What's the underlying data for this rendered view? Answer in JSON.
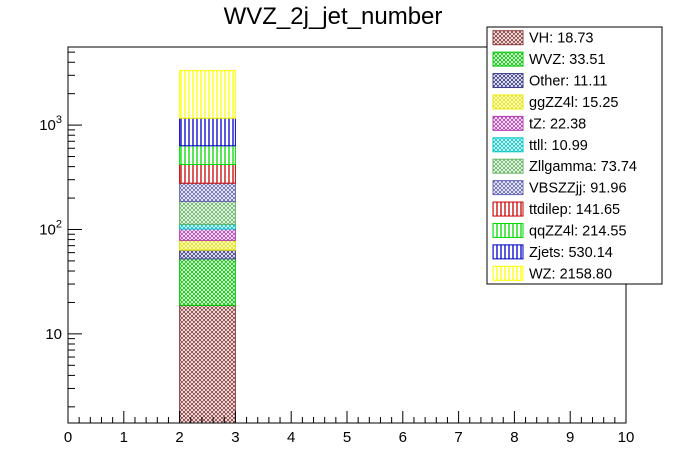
{
  "chart_data": {
    "type": "bar",
    "stacked": true,
    "title": "WVZ_2j_jet_number",
    "xlabel": "",
    "ylabel": "",
    "xlim": [
      0,
      10
    ],
    "ylim": [
      1.4,
      5600
    ],
    "yscale": "log",
    "bin": [
      2,
      3
    ],
    "x_ticks": [
      "0",
      "1",
      "2",
      "3",
      "4",
      "5",
      "6",
      "7",
      "8",
      "9",
      "10"
    ],
    "y_ticks": [
      {
        "value": 10,
        "base": "10",
        "exp": ""
      },
      {
        "value": 100,
        "base": "10",
        "exp": "2"
      },
      {
        "value": 1000,
        "base": "10",
        "exp": "3"
      }
    ],
    "legend_position": "top-right",
    "series": [
      {
        "name": "VH",
        "value": 18.73,
        "label": "VH: 18.73",
        "color": "#8c3a3a",
        "pattern": "cross"
      },
      {
        "name": "WVZ",
        "value": 33.51,
        "label": "WVZ: 33.51",
        "color": "#00c800",
        "pattern": "cross"
      },
      {
        "name": "Other",
        "value": 11.11,
        "label": "Other: 11.11",
        "color": "#3c3c8c",
        "pattern": "cross"
      },
      {
        "name": "ggZZ4l",
        "value": 15.25,
        "label": "ggZZ4l: 15.25",
        "color": "#e6e600",
        "pattern": "cross"
      },
      {
        "name": "tZ",
        "value": 22.38,
        "label": "tZ: 22.38",
        "color": "#b43cb4",
        "pattern": "cross"
      },
      {
        "name": "ttll",
        "value": 10.99,
        "label": "ttll: 10.99",
        "color": "#00c8c8",
        "pattern": "cross"
      },
      {
        "name": "Zllgamma",
        "value": 73.74,
        "label": "Zllgamma: 73.74",
        "color": "#64b464",
        "pattern": "cross"
      },
      {
        "name": "VBSZZjj",
        "value": 91.96,
        "label": "VBSZZjj: 91.96",
        "color": "#6464b4",
        "pattern": "cross"
      },
      {
        "name": "ttdilep",
        "value": 141.65,
        "label": "ttdilep: 141.65",
        "color": "#c80000",
        "pattern": "vlines"
      },
      {
        "name": "qqZZ4l",
        "value": 214.55,
        "label": "qqZZ4l: 214.55",
        "color": "#00dc00",
        "pattern": "vlines"
      },
      {
        "name": "Zjets",
        "value": 530.14,
        "label": "Zjets: 530.14",
        "color": "#0000c8",
        "pattern": "vlines"
      },
      {
        "name": "WZ",
        "value": 2158.8,
        "label": "WZ: 2158.80",
        "color": "#ffff00",
        "pattern": "vlines"
      }
    ]
  }
}
